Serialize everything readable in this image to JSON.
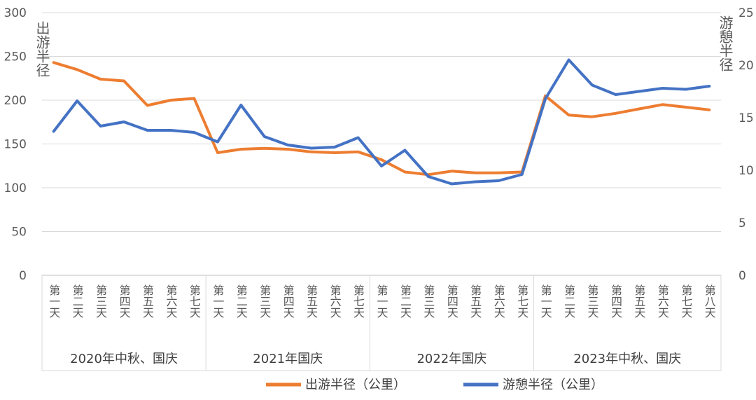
{
  "chart_data": {
    "type": "line",
    "y_left": {
      "label": "出游半径",
      "ylim": [
        0,
        300
      ],
      "ticks": [
        0,
        50,
        100,
        150,
        200,
        250,
        300
      ]
    },
    "y_right": {
      "label": "游憩半径",
      "ylim": [
        0,
        25
      ],
      "ticks": [
        0,
        5,
        10,
        15,
        20,
        25
      ]
    },
    "groups": [
      {
        "name": "2020年中秋、国庆",
        "days": [
          "第一天",
          "第二天",
          "第三天",
          "第四天",
          "第五天",
          "第六天",
          "第七天"
        ]
      },
      {
        "name": "2021年国庆",
        "days": [
          "第一天",
          "第二天",
          "第三天",
          "第四天",
          "第五天",
          "第六天",
          "第七天"
        ]
      },
      {
        "name": "2022年国庆",
        "days": [
          "第一天",
          "第二天",
          "第三天",
          "第四天",
          "第五天",
          "第六天",
          "第七天"
        ]
      },
      {
        "name": "2023年中秋、国庆",
        "days": [
          "第一天",
          "第二天",
          "第三天",
          "第四天",
          "第五天",
          "第六天",
          "第七天",
          "第八天"
        ]
      }
    ],
    "series": [
      {
        "name": "出游半径（公里）",
        "axis": "left",
        "color": "#ED7D31",
        "values": [
          243,
          235,
          224,
          222,
          194,
          200,
          202,
          140,
          144,
          145,
          144,
          141,
          140,
          141,
          132,
          118,
          115,
          119,
          117,
          117,
          118,
          205,
          183,
          181,
          185,
          190,
          195,
          192,
          189
        ]
      },
      {
        "name": "游憩半径（公里）",
        "axis": "right",
        "color": "#4472C4",
        "values": [
          13.7,
          16.6,
          14.2,
          14.6,
          13.8,
          13.8,
          13.6,
          12.7,
          16.2,
          13.2,
          12.4,
          12.1,
          12.2,
          13.1,
          10.4,
          11.9,
          9.4,
          8.7,
          8.9,
          9.0,
          9.6,
          16.8,
          20.5,
          18.1,
          17.2,
          17.5,
          17.8,
          17.7,
          18.0
        ]
      }
    ],
    "grid": true,
    "legend": "bottom"
  }
}
